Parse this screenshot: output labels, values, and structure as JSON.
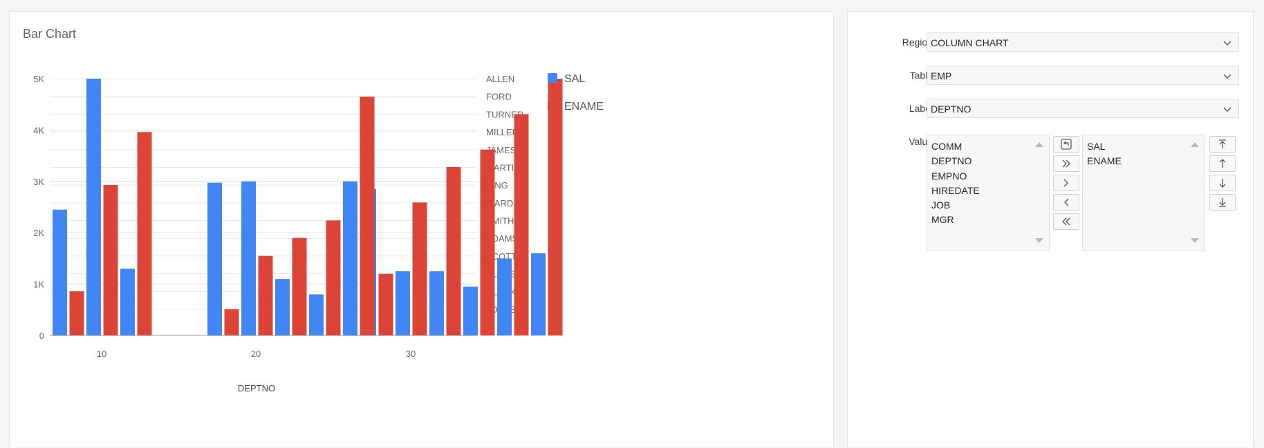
{
  "chart_region": {
    "title": "Bar Chart"
  },
  "chart_data": {
    "type": "bar",
    "categories": [
      "10",
      "20",
      "30"
    ],
    "xlabel": "DEPTNO",
    "left_axis": {
      "ylim": [
        0,
        5000
      ],
      "ticks": [
        "0",
        "1K",
        "2K",
        "3K",
        "4K",
        "5K"
      ],
      "tick_values": [
        0,
        1000,
        2000,
        3000,
        4000,
        5000
      ]
    },
    "right_axis": {
      "ticks": [
        "JONES",
        "CLARK",
        "BLAKE",
        "SCOTT",
        "ADAMS",
        "SMITH",
        "WARD",
        "KING",
        "MARTIN",
        "JAMES",
        "MILLER",
        "TURNER",
        "FORD",
        "ALLEN"
      ]
    },
    "grid": true,
    "legend_position": "right",
    "series": [
      {
        "name": "SAL",
        "color": "#4285f4",
        "points": [
          {
            "group": "10",
            "slot": 0,
            "value": 2450
          },
          {
            "group": "10",
            "slot": 2,
            "value": 5000
          },
          {
            "group": "10",
            "slot": 4,
            "value": 1300
          },
          {
            "group": "20",
            "slot": 0,
            "value": 2975
          },
          {
            "group": "20",
            "slot": 2,
            "value": 3000
          },
          {
            "group": "20",
            "slot": 4,
            "value": 1100
          },
          {
            "group": "20",
            "slot": 6,
            "value": 800
          },
          {
            "group": "20",
            "slot": 8,
            "value": 3000
          },
          {
            "group": "30",
            "slot": 0,
            "value": 2850
          },
          {
            "group": "30",
            "slot": 2,
            "value": 1250
          },
          {
            "group": "30",
            "slot": 4,
            "value": 1250
          },
          {
            "group": "30",
            "slot": 6,
            "value": 950
          },
          {
            "group": "30",
            "slot": 8,
            "value": 1500
          },
          {
            "group": "30",
            "slot": 10,
            "value": 1600
          }
        ]
      },
      {
        "name": "ENAME",
        "color": "#db4437",
        "points": [
          {
            "group": "10",
            "slot": 1,
            "value": 860
          },
          {
            "group": "10",
            "slot": 3,
            "value": 2930
          },
          {
            "group": "10",
            "slot": 5,
            "value": 3960
          },
          {
            "group": "20",
            "slot": 1,
            "value": 510
          },
          {
            "group": "20",
            "slot": 3,
            "value": 1550
          },
          {
            "group": "20",
            "slot": 5,
            "value": 1900
          },
          {
            "group": "20",
            "slot": 7,
            "value": 2240
          },
          {
            "group": "20",
            "slot": 9,
            "value": 4650
          },
          {
            "group": "30",
            "slot": 1,
            "value": 1200
          },
          {
            "group": "30",
            "slot": 3,
            "value": 2590
          },
          {
            "group": "30",
            "slot": 5,
            "value": 3280
          },
          {
            "group": "30",
            "slot": 7,
            "value": 3620
          },
          {
            "group": "30",
            "slot": 9,
            "value": 4310
          },
          {
            "group": "30",
            "slot": 11,
            "value": 5000
          }
        ]
      }
    ]
  },
  "form": {
    "region": {
      "label": "Region",
      "value": "COLUMN CHART"
    },
    "table": {
      "label": "Table",
      "value": "EMP"
    },
    "label_field": {
      "label": "Label",
      "value": "DEPTNO"
    },
    "value_field": {
      "label": "Value",
      "available": [
        "COMM",
        "DEPTNO",
        "EMPNO",
        "HIREDATE",
        "JOB",
        "MGR"
      ],
      "selected": [
        "SAL",
        "ENAME"
      ]
    },
    "shuttle_buttons": [
      "reset-icon",
      "move-all-icon",
      "move-icon",
      "remove-icon",
      "remove-all-icon"
    ],
    "order_buttons": [
      "move-top-icon",
      "move-up-icon",
      "move-down-icon",
      "move-bottom-icon"
    ]
  }
}
